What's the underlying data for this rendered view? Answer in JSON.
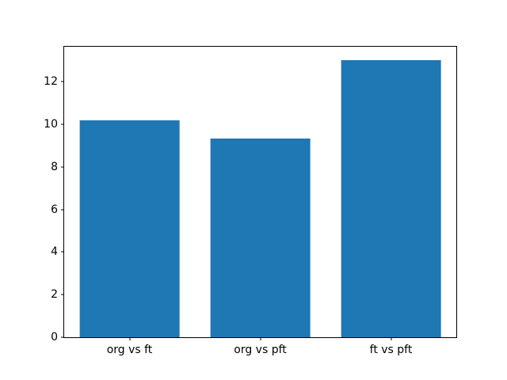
{
  "chart_data": {
    "type": "bar",
    "categories": [
      "org vs ft",
      "org vs pft",
      "ft vs pft"
    ],
    "values": [
      10.2,
      9.35,
      13.0
    ],
    "title": "",
    "xlabel": "",
    "ylabel": "",
    "ylim": [
      0,
      13.65
    ],
    "yticks": [
      0,
      2,
      4,
      6,
      8,
      10,
      12
    ],
    "bar_color": "#1f77b4",
    "bar_width_fraction": 0.256,
    "grid": false,
    "legend": false,
    "background_color": "#ffffff",
    "spine_color": "#000000"
  }
}
